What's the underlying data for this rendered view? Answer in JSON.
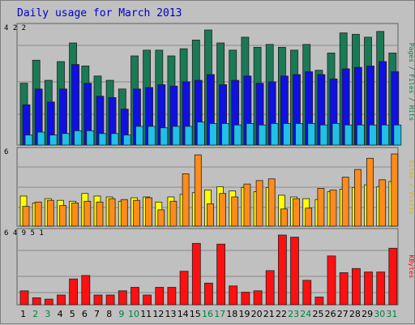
{
  "chart_data": {
    "type": "bar",
    "title": "Daily usage for March 2013",
    "x": [
      "1",
      "2",
      "3",
      "4",
      "5",
      "6",
      "7",
      "8",
      "9",
      "10",
      "11",
      "12",
      "13",
      "14",
      "15",
      "16",
      "17",
      "18",
      "19",
      "20",
      "21",
      "22",
      "23",
      "24",
      "25",
      "26",
      "27",
      "28",
      "29",
      "30",
      "31"
    ],
    "weekend_days": [
      "2",
      "3",
      "9",
      "10",
      "16",
      "17",
      "23",
      "24",
      "30",
      "31"
    ],
    "colors": {
      "weekday": "#000000",
      "weekend": "#008040"
    },
    "panels": [
      {
        "name": "top",
        "series": [
          {
            "name": "Hits",
            "color": "#1a7a55",
            "values": [
              43,
              59,
              45,
              58,
              71,
              55,
              48,
              45,
              39,
              62,
              66,
              66,
              62,
              67,
              73,
              80,
              71,
              66,
              75,
              68,
              70,
              68,
              66,
              70,
              52,
              64,
              78,
              77,
              75,
              79,
              64
            ]
          },
          {
            "name": "Files",
            "color": "#1010e0",
            "values": [
              28,
              39,
              30,
              39,
              56,
              43,
              34,
              33,
              25,
              39,
              40,
              42,
              41,
              44,
              45,
              49,
              42,
              45,
              48,
              43,
              44,
              48,
              49,
              51,
              49,
              46,
              53,
              54,
              55,
              58,
              51
            ]
          },
          {
            "name": "Pages",
            "color": "#20c0e8",
            "values": [
              7,
              9,
              7,
              8,
              10,
              10,
              8,
              8,
              7,
              13,
              13,
              12,
              13,
              13,
              16,
              15,
              15,
              14,
              15,
              14,
              15,
              15,
              15,
              15,
              14,
              15,
              14,
              14,
              14,
              14,
              14
            ]
          }
        ]
      },
      {
        "name": "middle",
        "series": [
          {
            "name": "Visits",
            "color": "#ffff00",
            "values": [
              35,
              27,
              32,
              30,
              29,
              38,
              35,
              34,
              29,
              33,
              34,
              28,
              34,
              37,
              39,
              42,
              46,
              41,
              45,
              40,
              45,
              36,
              34,
              32,
              31,
              40,
              43,
              45,
              48,
              46,
              52
            ]
          },
          {
            "name": "Sites",
            "color": "#ff8c1a",
            "values": [
              23,
              28,
              30,
              24,
              27,
              29,
              28,
              32,
              31,
              30,
              33,
              19,
              29,
              61,
              83,
              26,
              38,
              34,
              49,
              53,
              55,
              20,
              32,
              21,
              44,
              42,
              57,
              66,
              79,
              54,
              84
            ]
          }
        ]
      },
      {
        "name": "bottom",
        "series": [
          {
            "name": "KBytes",
            "color": "#ff1010",
            "values": [
              20,
              10,
              8,
              14,
              37,
              42,
              14,
              14,
              20,
              25,
              14,
              25,
              25,
              48,
              88,
              31,
              87,
              27,
              18,
              20,
              49,
              100,
              97,
              35,
              11,
              70,
              46,
              52,
              47,
              47,
              81
            ]
          }
        ]
      }
    ],
    "side_labels": [
      {
        "text": "Pages / Files / Hits",
        "color": "#008040"
      },
      {
        "text": "Sites / Visits",
        "color": "#e0b000"
      },
      {
        "text": "KBytes",
        "color": "#ff0000"
      }
    ],
    "max_labels": [
      "4 2 2",
      "6",
      "6 4 9 5 1"
    ]
  }
}
